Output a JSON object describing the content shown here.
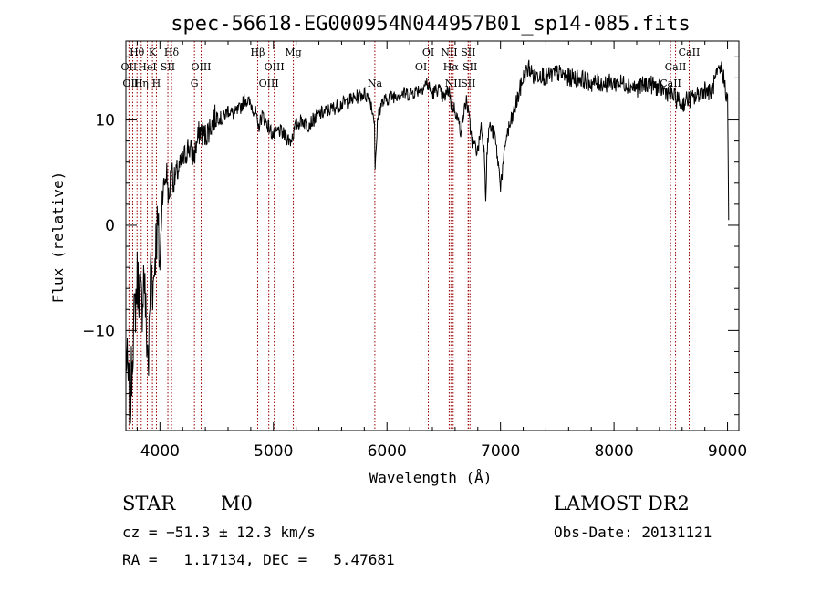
{
  "chart_data": {
    "type": "line",
    "title": "spec-56618-EG000954N044957B01_sp14-085.fits",
    "xlabel": "Wavelength (Å)",
    "ylabel": "Flux (relative)",
    "xlim": [
      3700,
      9100
    ],
    "ylim": [
      -19.5,
      17.5
    ],
    "xticks": [
      4000,
      5000,
      6000,
      7000,
      8000,
      9000
    ],
    "yticks": [
      -10,
      0,
      10
    ],
    "grid": false,
    "series": [
      {
        "x": [
          3700,
          3720,
          3740,
          3760,
          3780,
          3800,
          3820,
          3840,
          3860,
          3880,
          3900,
          3920,
          3940,
          3960,
          3980,
          4000,
          4020,
          4040,
          4060,
          4080,
          4100,
          4120,
          4150,
          4200,
          4250,
          4300,
          4350,
          4400,
          4450,
          4500,
          4550,
          4600,
          4650,
          4700,
          4750,
          4800,
          4850,
          4861,
          4900,
          4950,
          5000,
          5050,
          5100,
          5150,
          5200,
          5250,
          5300,
          5400,
          5500,
          5600,
          5700,
          5800,
          5850,
          5890,
          5895,
          5920,
          5950,
          6000,
          6100,
          6200,
          6300,
          6350,
          6400,
          6450,
          6500,
          6550,
          6563,
          6600,
          6650,
          6700,
          6750,
          6800,
          6830,
          6860,
          6870,
          6880,
          6900,
          6950,
          7000,
          7030,
          7050,
          7070,
          7100,
          7150,
          7200,
          7250,
          7300,
          7350,
          7400,
          7500,
          7600,
          7700,
          7800,
          7900,
          8000,
          8100,
          8200,
          8300,
          8400,
          8500,
          8550,
          8600,
          8650,
          8700,
          8750,
          8800,
          8850,
          8900,
          8950,
          8990,
          9000,
          9010
        ],
        "y": [
          -12,
          -15,
          -17,
          -11,
          -8,
          -5,
          -6,
          -8,
          -4,
          -10,
          -13,
          -3,
          -6,
          -2,
          0,
          -4,
          3,
          4,
          5,
          2,
          6,
          4,
          5,
          6,
          7.5,
          6.5,
          9,
          8.5,
          9.5,
          10.5,
          10,
          11,
          10.5,
          11,
          12,
          11.5,
          10.5,
          9,
          10.5,
          9.5,
          8.5,
          9,
          8.5,
          8,
          9.5,
          10,
          9.5,
          10.5,
          11,
          11.5,
          12,
          12.5,
          12,
          10,
          5,
          10.5,
          11.5,
          12,
          12.5,
          12.5,
          13,
          13.5,
          12.5,
          13,
          12,
          13,
          11.5,
          11,
          9,
          12,
          8,
          7,
          9.5,
          6.5,
          2.5,
          6.5,
          9.5,
          8.5,
          4,
          6,
          8.5,
          9,
          10,
          12,
          14,
          15,
          14,
          14.5,
          14,
          14.5,
          14,
          14,
          13.5,
          13.5,
          13.5,
          13.5,
          13,
          13.5,
          13,
          12.5,
          12,
          11.5,
          12,
          12,
          12.5,
          13,
          12.5,
          14,
          15,
          12.5,
          12,
          0.5
        ]
      }
    ],
    "lines": [
      {
        "label": "Hθ",
        "x": 3798,
        "row": 0
      },
      {
        "label": "K",
        "x": 3934,
        "row": 0
      },
      {
        "label": "Hδ",
        "x": 4102,
        "row": 0
      },
      {
        "label": "OII",
        "x": 3727,
        "row": 1
      },
      {
        "label": "HeI",
        "x": 3889,
        "row": 1
      },
      {
        "label": "SII",
        "x": 4070,
        "row": 1
      },
      {
        "label": "OIII",
        "x": 3760,
        "row": 2
      },
      {
        "label": "Hη",
        "x": 3835,
        "row": 2
      },
      {
        "label": "H",
        "x": 3969,
        "row": 2
      },
      {
        "label": "OIII",
        "x": 4363,
        "row": 1
      },
      {
        "label": "G",
        "x": 4304,
        "row": 2
      },
      {
        "label": "Hβ",
        "x": 4861,
        "row": 0
      },
      {
        "label": "OIII",
        "x": 5007,
        "row": 1
      },
      {
        "label": "OIII",
        "x": 4959,
        "row": 2
      },
      {
        "label": "Mg",
        "x": 5175,
        "row": 0
      },
      {
        "label": "Na",
        "x": 5893,
        "row": 2
      },
      {
        "label": "OI",
        "x": 6364,
        "row": 0
      },
      {
        "label": "OI",
        "x": 6300,
        "row": 1
      },
      {
        "label": "NII",
        "x": 6548,
        "row": 0
      },
      {
        "label": "Hα",
        "x": 6563,
        "row": 1
      },
      {
        "label": "NII",
        "x": 6583,
        "row": 2
      },
      {
        "label": "SII",
        "x": 6716,
        "row": 0
      },
      {
        "label": "SII",
        "x": 6731,
        "row": 1
      },
      {
        "label": "SII",
        "x": 6716,
        "row": 2
      },
      {
        "label": "CaII",
        "x": 8662,
        "row": 0
      },
      {
        "label": "CaII",
        "x": 8542,
        "row": 1
      },
      {
        "label": "CaII",
        "x": 8498,
        "row": 2
      }
    ],
    "colors": {
      "spectrum": "#000000",
      "line_marker": "#990000",
      "axes": "#000000"
    }
  },
  "info": {
    "class": "STAR",
    "subclass": "M0",
    "survey": "LAMOST DR2",
    "cz_text": "cz = −51.3 ± 12.3 km/s",
    "obs_date": "Obs-Date: 20131121",
    "radec": "RA =   1.17134, DEC =   5.47681"
  }
}
